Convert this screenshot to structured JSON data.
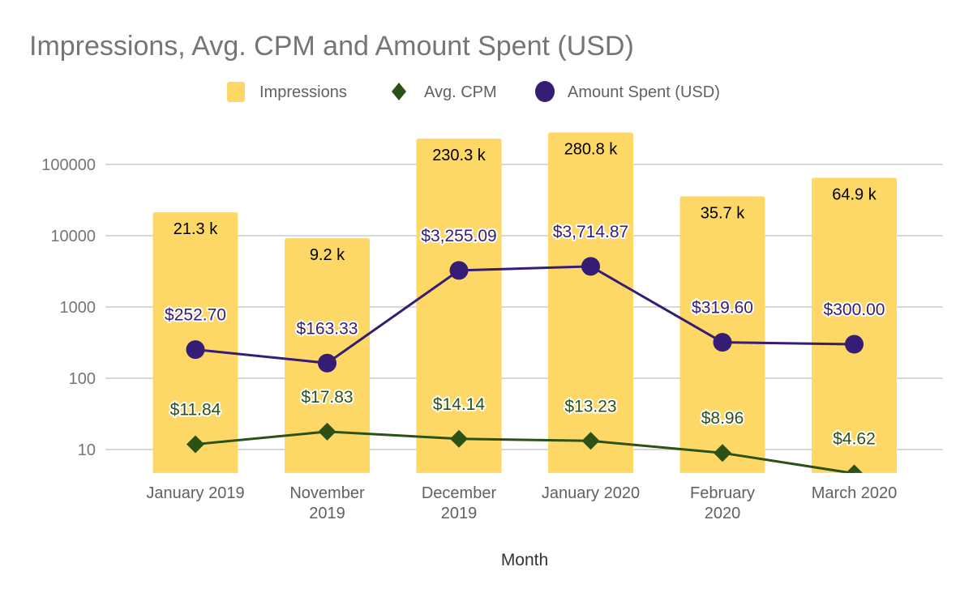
{
  "chart_data": {
    "type": "bar",
    "title": "Impressions, Avg. CPM and Amount Spent (USD)",
    "xlabel": "Month",
    "ylabel": "",
    "yscale": "log",
    "ylim": [
      4.7,
      100000
    ],
    "yticks": [
      10,
      100,
      1000,
      10000,
      100000
    ],
    "ytick_labels": [
      "10",
      "100",
      "1000",
      "10000",
      "100000"
    ],
    "grid": true,
    "legend_position": "top",
    "categories": [
      [
        "January 2019"
      ],
      [
        "November",
        "2019"
      ],
      [
        "December",
        "2019"
      ],
      [
        "January 2020"
      ],
      [
        "February",
        "2020"
      ],
      [
        "March 2020"
      ]
    ],
    "series": [
      {
        "name": "Impressions",
        "type": "bar",
        "color": "#fdd866",
        "marker": "square",
        "values": [
          21300,
          9200,
          230300,
          280800,
          35700,
          64900
        ],
        "labels": [
          "21.3 k",
          "9.2 k",
          "230.3 k",
          "280.8 k",
          "35.7 k",
          "64.9 k"
        ],
        "label_color": "#000000"
      },
      {
        "name": "Avg. CPM",
        "type": "line",
        "color": "#2b5116",
        "marker": "diamond",
        "values": [
          11.84,
          17.83,
          14.14,
          13.23,
          8.96,
          4.62
        ],
        "labels": [
          "$11.84",
          "$17.83",
          "$14.14",
          "$13.23",
          "$8.96",
          "$4.62"
        ],
        "label_color": "#2b5116"
      },
      {
        "name": "Amount Spent (USD)",
        "type": "line",
        "color": "#351c75",
        "marker": "circle",
        "values": [
          252.7,
          163.33,
          3255.09,
          3714.87,
          319.6,
          300.0
        ],
        "labels": [
          "$252.70",
          "$163.33",
          "$3,255.09",
          "$3,714.87",
          "$319.60",
          "$300.00"
        ],
        "label_color": "#351c75"
      }
    ]
  }
}
